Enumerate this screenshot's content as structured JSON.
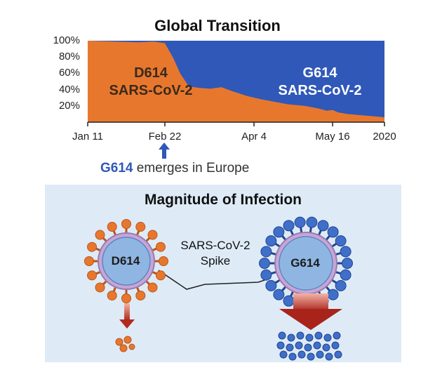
{
  "top": {
    "title": "Global Transition",
    "d614_label_line1": "D614",
    "d614_label_line2": "SARS-CoV-2",
    "g614_label_line1": "G614",
    "g614_label_line2": "SARS-CoV-2",
    "emerge_variant": "G614",
    "emerge_text": " emerges in Europe"
  },
  "chart_data": {
    "type": "area",
    "stacked": true,
    "x_ticks": [
      "Jan 11",
      "Feb 22",
      "Apr 4",
      "May 16",
      "2020"
    ],
    "y_ticks": [
      "100%",
      "80%",
      "60%",
      "40%",
      "20%"
    ],
    "ylim": [
      0,
      100
    ],
    "series": [
      {
        "name": "D614",
        "color": "#e8772e",
        "x": [
          "Jan 11",
          "Jan 25",
          "Feb 8",
          "Feb 16",
          "Feb 22",
          "Feb 26",
          "Mar 1",
          "Mar 5",
          "Mar 10",
          "Mar 15",
          "Mar 20",
          "Mar 25",
          "Apr 1",
          "Apr 8",
          "Apr 15",
          "Apr 22",
          "May 1",
          "May 8",
          "May 13",
          "May 16",
          "May 19",
          "May 24",
          "2020"
        ],
        "values": [
          100,
          99,
          98,
          99,
          97,
          78,
          60,
          44,
          42,
          41,
          43,
          38,
          32,
          28,
          25,
          22,
          20,
          17,
          14,
          15,
          12,
          10,
          6
        ]
      },
      {
        "name": "G614",
        "color": "#2f58b8",
        "x": [
          "Jan 11",
          "Jan 25",
          "Feb 8",
          "Feb 16",
          "Feb 22",
          "Feb 26",
          "Mar 1",
          "Mar 5",
          "Mar 10",
          "Mar 15",
          "Mar 20",
          "Mar 25",
          "Apr 1",
          "Apr 8",
          "Apr 15",
          "Apr 22",
          "May 1",
          "May 8",
          "May 13",
          "May 16",
          "May 19",
          "May 24",
          "2020"
        ],
        "values": [
          0,
          1,
          2,
          1,
          3,
          22,
          40,
          56,
          58,
          59,
          57,
          62,
          68,
          72,
          75,
          78,
          80,
          83,
          86,
          85,
          88,
          90,
          94
        ]
      }
    ]
  },
  "bottom": {
    "title": "Magnitude of Infection",
    "spike_line1": "SARS-CoV-2",
    "spike_line2": "Spike",
    "left_virus": "D614",
    "right_virus": "G614"
  },
  "colors": {
    "d614_orange": "#e8772e",
    "g614_blue": "#2f58b8",
    "panel_bg": "#deebf7",
    "arrow_red": "#c0392b"
  }
}
